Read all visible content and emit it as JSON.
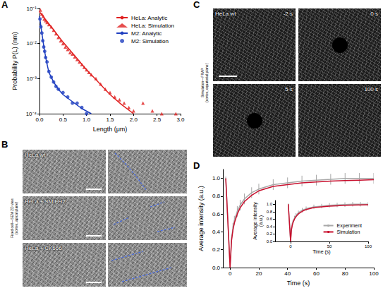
{
  "chart_data": [
    {
      "panel": "A",
      "type": "line",
      "xlabel": "Length (μm)",
      "ylabel": "Probability P(L) (nm)",
      "log": "y",
      "grid": false,
      "legend": "upper right",
      "xlim": [
        0,
        3
      ],
      "xticks": [
        {
          "value": 0,
          "label": "0.0"
        },
        0.5,
        {
          "value": 1,
          "label": "1.0"
        },
        1.5,
        {
          "value": 2,
          "label": "2.0"
        },
        2.5,
        {
          "value": 3,
          "label": "3.0"
        }
      ],
      "ylim": [
        0.0001,
        0.1
      ],
      "yticks": [
        {
          "value": 0.0001,
          "label": "10⁻⁴"
        },
        {
          "value": 0.001,
          "label": "10⁻³"
        },
        {
          "value": 0.01,
          "label": "10⁻²"
        },
        {
          "value": 0.1,
          "label": "10⁻¹"
        }
      ],
      "series": [
        {
          "name": "HeLa: Analytic",
          "type": "line",
          "line_style": "solid",
          "color": "#e02020",
          "x": [
            0,
            0.25,
            0.5,
            0.75,
            1.0,
            1.25,
            1.5,
            1.75,
            2.0
          ],
          "values": [
            0.08,
            0.03,
            0.011,
            0.0045,
            0.0018,
            0.0008,
            0.00035,
            0.00018,
            0.0001
          ]
        },
        {
          "name": "HeLa: Simulation",
          "type": "scatter",
          "marker": "triangle",
          "color": "#e02020",
          "x": [
            0.02,
            0.05,
            0.08,
            0.1,
            0.13,
            0.16,
            0.2,
            0.25,
            0.3,
            0.35,
            0.4,
            0.45,
            0.5,
            0.55,
            0.6,
            0.65,
            0.7,
            0.75,
            0.8,
            0.85,
            0.9,
            0.95,
            1.0,
            1.05,
            1.1,
            1.2,
            1.3,
            1.4,
            1.5,
            1.6,
            1.7,
            1.8,
            1.9,
            2.0,
            2.2,
            2.4,
            2.6,
            2.9
          ],
          "values": [
            0.09,
            0.07,
            0.06,
            0.05,
            0.045,
            0.04,
            0.035,
            0.03,
            0.024,
            0.019,
            0.015,
            0.012,
            0.01,
            0.008,
            0.0068,
            0.0055,
            0.005,
            0.0042,
            0.0035,
            0.003,
            0.0025,
            0.0021,
            0.0018,
            0.0015,
            0.0013,
            0.001,
            0.0007,
            0.0005,
            0.0004,
            0.0003,
            0.00025,
            0.0002,
            0.00015,
            0.00012,
            0.0002,
            0.00012,
            0.0001,
            0.0001
          ]
        },
        {
          "name": "M2: Analytic",
          "type": "line",
          "line_style": "solid",
          "color": "#1f3fc0",
          "x": [
            0,
            0.05,
            0.1,
            0.15,
            0.2,
            0.3,
            0.4,
            0.5,
            0.7,
            0.9,
            1.1
          ],
          "values": [
            0.06,
            0.02,
            0.007,
            0.003,
            0.0015,
            0.0008,
            0.0005,
            0.00035,
            0.00022,
            0.00014,
            0.0001
          ]
        },
        {
          "name": "M2: Simulation",
          "type": "scatter",
          "marker": "circle",
          "color": "#1f3fc0",
          "x": [
            0.01,
            0.03,
            0.05,
            0.07,
            0.09,
            0.11,
            0.13,
            0.16,
            0.2,
            0.25,
            0.3,
            0.35,
            0.4,
            0.5,
            0.6,
            0.7,
            0.8,
            0.9,
            1.0
          ],
          "values": [
            0.05,
            0.03,
            0.02,
            0.012,
            0.008,
            0.006,
            0.004,
            0.003,
            0.0016,
            0.0011,
            0.0008,
            0.0006,
            0.0005,
            0.0004,
            0.0003,
            0.0002,
            0.0002,
            0.00015,
            0.0001
          ]
        }
      ]
    },
    {
      "panel": "D",
      "type": "line",
      "xlabel": "Time (s)",
      "ylabel": "Average intensity (a.u.)",
      "grid": false,
      "legend": "lower right",
      "xlim": [
        -5,
        100
      ],
      "xticks": [
        0,
        20,
        40,
        60,
        80,
        100
      ],
      "ylim": [
        0,
        1.1
      ],
      "yticks": [
        {
          "value": 0,
          "label": "0.0"
        },
        0.2,
        0.4,
        0.6,
        0.8,
        {
          "value": 1,
          "label": "1.0"
        }
      ],
      "inset": {
        "xlabel": "Time (s)",
        "ylabel": "Average intensity (a.u.)",
        "xlim": [
          -20,
          100
        ],
        "xticks": [
          0,
          50,
          100
        ],
        "ylim": [
          0,
          1.1
        ],
        "yticks": [
          {
            "value": 0,
            "label": "0.0"
          },
          0.2,
          0.4,
          0.6,
          0.8,
          {
            "value": 1,
            "label": "1.0"
          }
        ]
      },
      "series": [
        {
          "name": "Experiment",
          "color": "#a8a8a8",
          "line_style": "solid",
          "x": [
            -3,
            0,
            1,
            2,
            3,
            5,
            7,
            10,
            15,
            20,
            30,
            40,
            50,
            60,
            70,
            80,
            90,
            100
          ],
          "values": [
            1.0,
            0.02,
            0.32,
            0.45,
            0.53,
            0.63,
            0.7,
            0.77,
            0.84,
            0.88,
            0.93,
            0.95,
            0.97,
            0.98,
            0.99,
            1.0,
            1.0,
            1.0
          ],
          "error": [
            0.02,
            0.02,
            0.05,
            0.05,
            0.05,
            0.06,
            0.06,
            0.06,
            0.06,
            0.06,
            0.06,
            0.06,
            0.06,
            0.06,
            0.06,
            0.06,
            0.06,
            0.06
          ]
        },
        {
          "name": "Simulation",
          "color": "#c8102e",
          "line_style": "solid",
          "x": [
            -3,
            0,
            1,
            2,
            3,
            5,
            7,
            10,
            15,
            20,
            30,
            40,
            50,
            60,
            70,
            80,
            90,
            100
          ],
          "values": [
            1.0,
            0.0,
            0.3,
            0.42,
            0.5,
            0.6,
            0.67,
            0.74,
            0.81,
            0.86,
            0.91,
            0.93,
            0.95,
            0.96,
            0.97,
            0.975,
            0.98,
            0.985
          ]
        }
      ]
    }
  ],
  "images": [
    {
      "panel": "B",
      "side_label": "Fixed cell—SEM 2D view",
      "sub_label": "(cortex, apical plane)",
      "rows": [
        {
          "label": "HeLa wt"
        },
        {
          "label": "HeLa + SMIFH2"
        },
        {
          "label": "HeLa + CK666"
        }
      ]
    },
    {
      "panel": "C",
      "side_label": "Simulation—FRAP",
      "sub_label": "(cortex, equatorial plane)",
      "frames": [
        {
          "label": "HeLa wt",
          "time": "-2 s"
        },
        {
          "time": "0 s"
        },
        {
          "time": "5 s"
        },
        {
          "time": "100 s"
        }
      ]
    }
  ]
}
